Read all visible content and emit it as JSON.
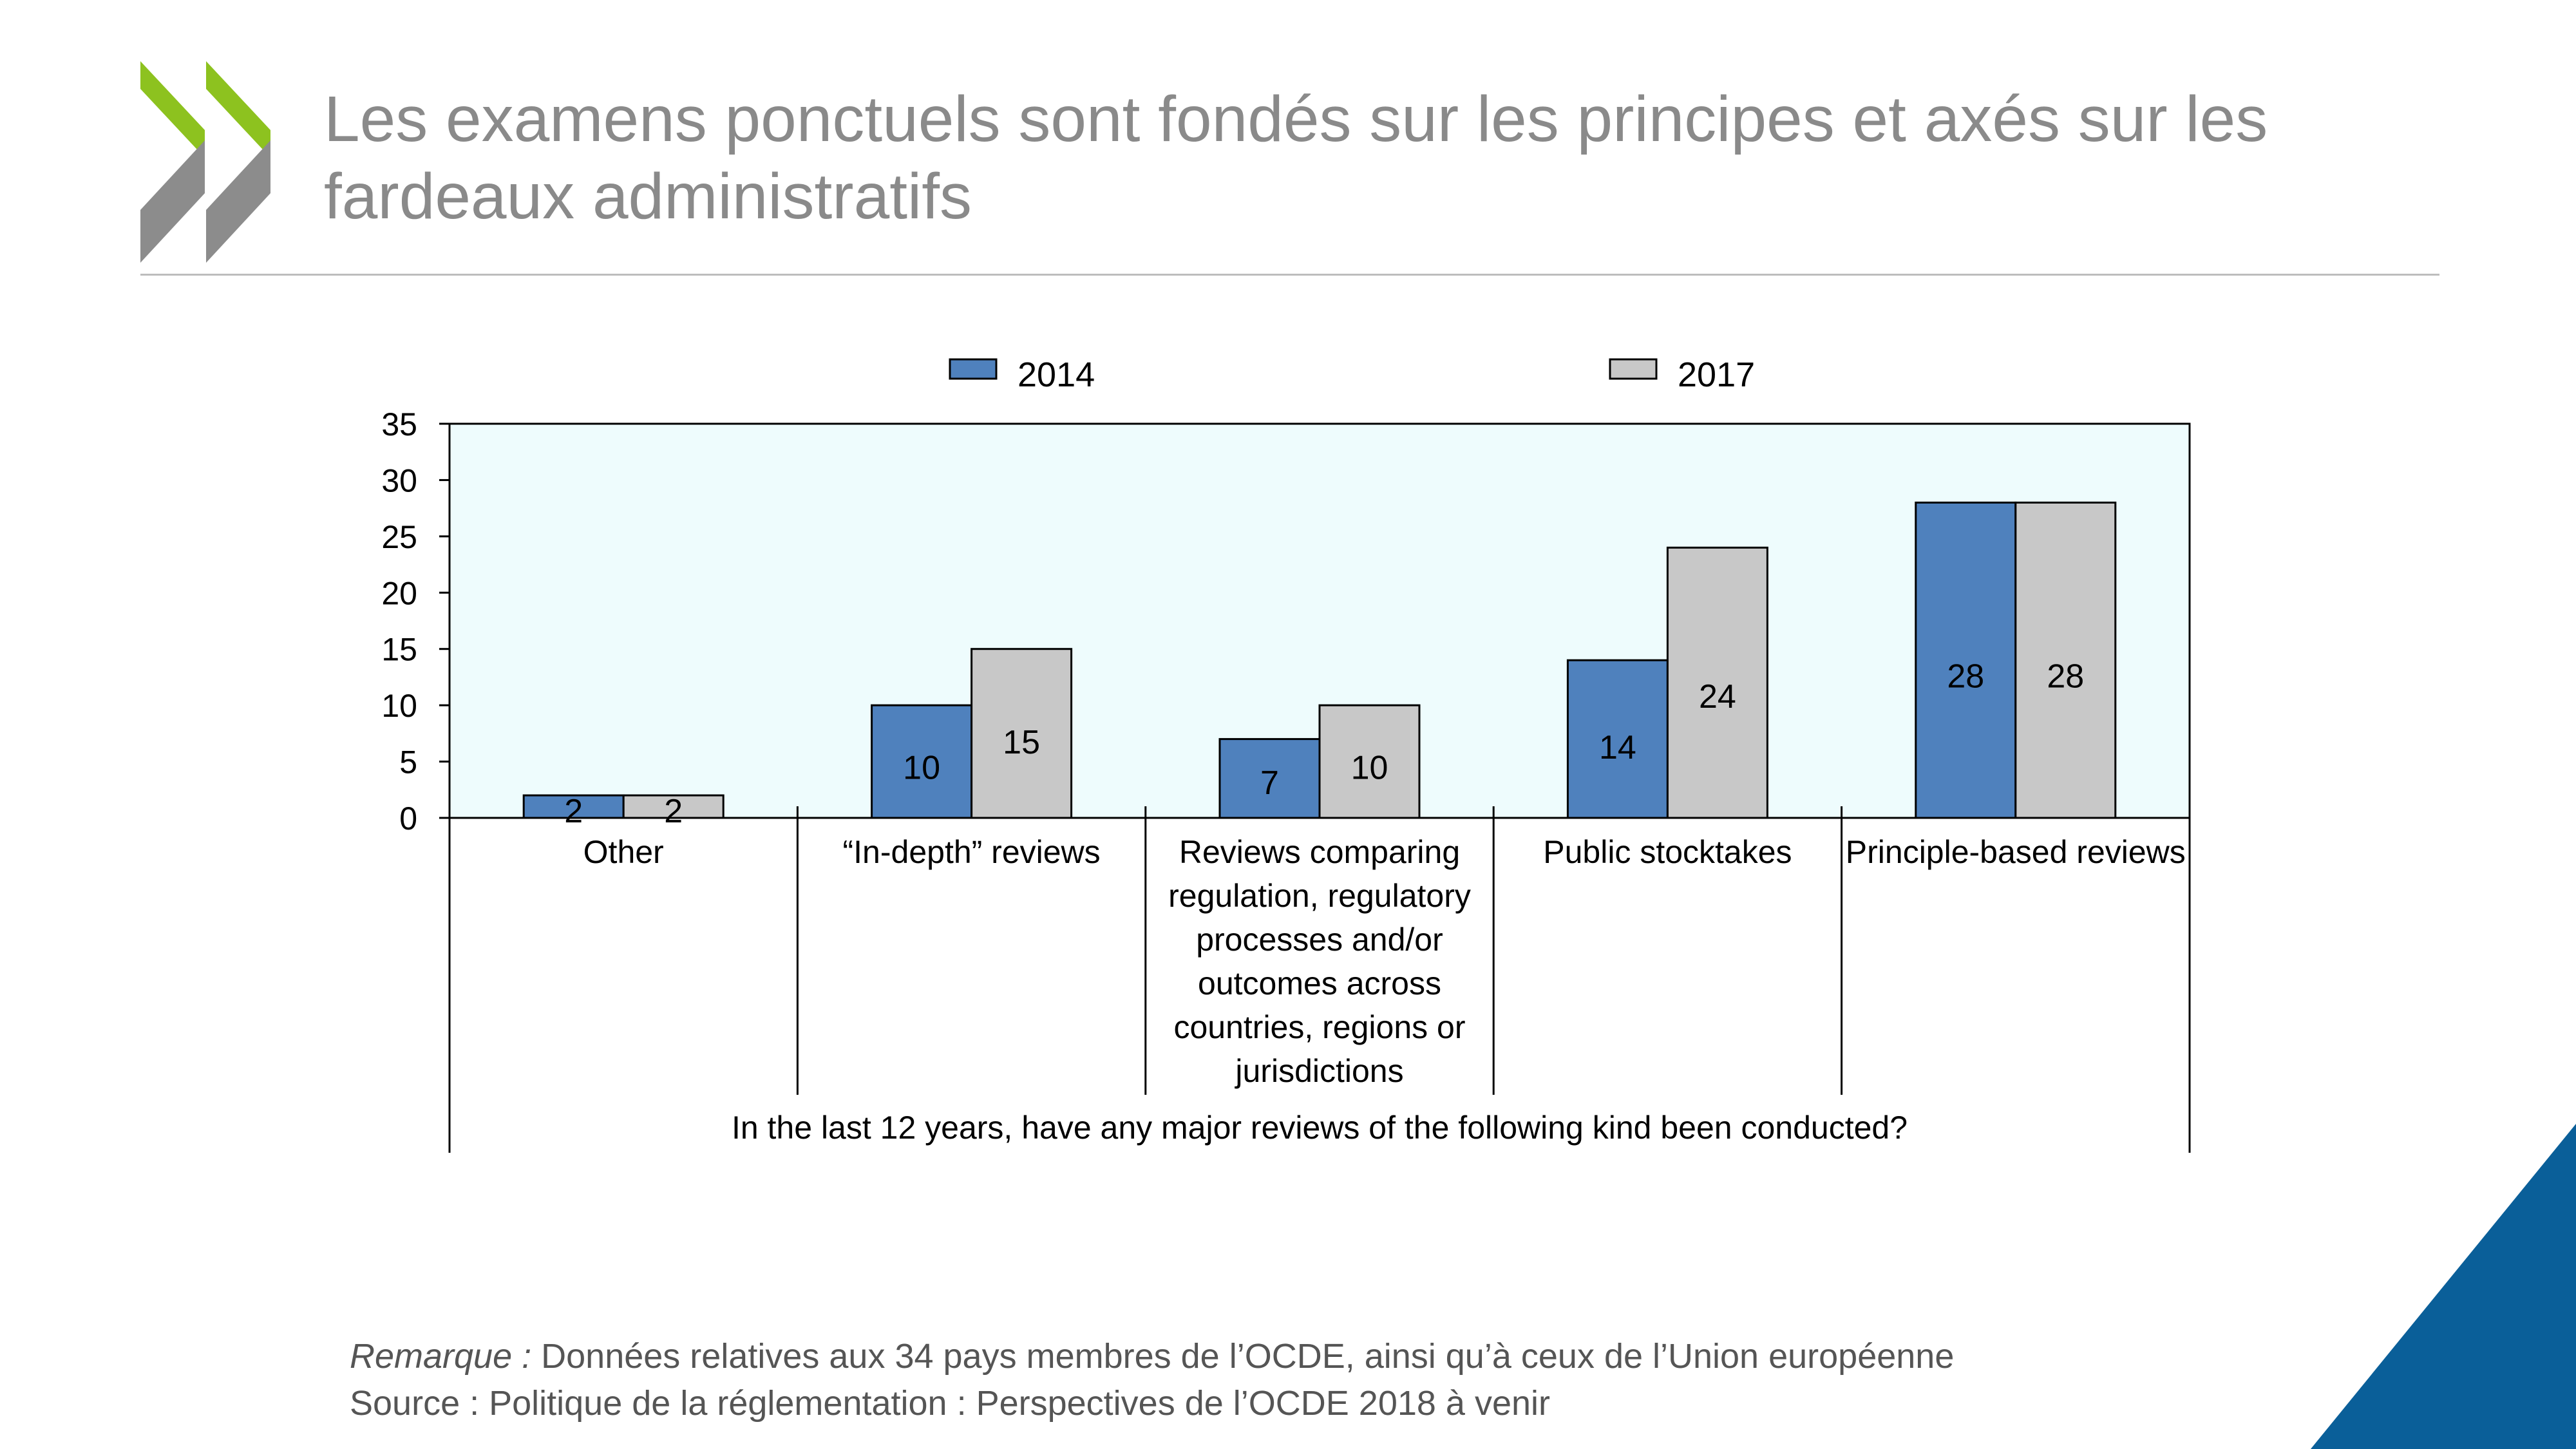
{
  "slide": {
    "title": "Les examens ponctuels sont fondés sur les principes et axés sur les fardeaux administratifs",
    "note_prefix": "Remarque :",
    "note_text": " Données relatives aux 34 pays membres de l’OCDE, ainsi qu’à ceux de l’Union européenne",
    "source": "Source : Politique de la réglementation : Perspectives de l’OCDE 2018 à venir",
    "colors": {
      "logo_green": "#8dc21f",
      "logo_gray": "#8c8c8c",
      "corner_blue": "#0a5f99"
    }
  },
  "chart_data": {
    "type": "bar",
    "categories": [
      [
        "Other"
      ],
      [
        "“In-depth” reviews"
      ],
      [
        "Reviews comparing",
        "regulation, regulatory",
        "processes and/or",
        "outcomes across",
        "countries, regions or",
        "jurisdictions"
      ],
      [
        "Public stocktakes"
      ],
      [
        "Principle-based reviews"
      ]
    ],
    "series": [
      {
        "name": "2014",
        "values": [
          2,
          10,
          7,
          14,
          28
        ],
        "color": "#4f81bd"
      },
      {
        "name": "2017",
        "values": [
          2,
          15,
          10,
          24,
          28
        ],
        "color": "#c8c8c8"
      }
    ],
    "xlabel": "In the last 12 years, have any major reviews of the following kind been conducted?",
    "ylabel": "",
    "ylim": [
      0,
      35
    ],
    "yticks": [
      0,
      5,
      10,
      15,
      20,
      25,
      30,
      35
    ],
    "plot_background": "#eefcfd",
    "legend_position": "top",
    "grid": false,
    "data_labels": true
  }
}
